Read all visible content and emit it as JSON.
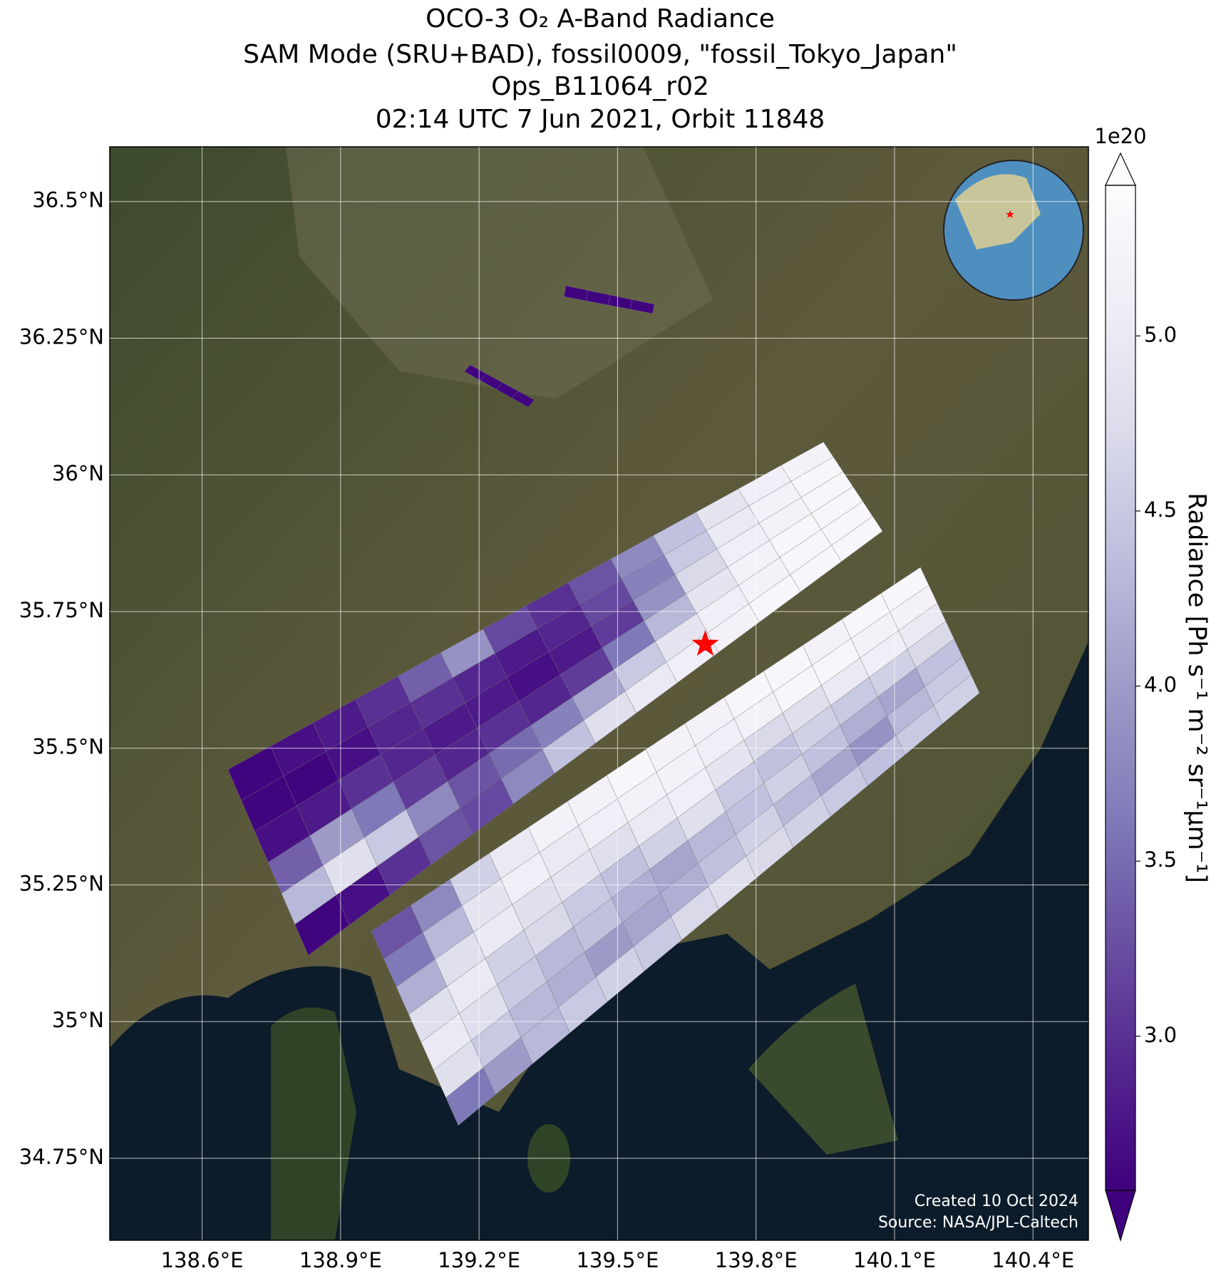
{
  "chart_data": {
    "type": "map",
    "title": [
      "OCO-3 O₂ A-Band Radiance",
      "SAM Mode (SRU+BAD), fossil0009, \"fossil_Tokyo_Japan\"",
      "Ops_B11064_r02",
      "02:14 UTC 7 Jun 2021, Orbit 11848"
    ],
    "xlim": [
      138.4,
      140.52
    ],
    "ylim": [
      34.6,
      36.6
    ],
    "grid": true,
    "xticks": [
      {
        "value": 138.6,
        "label": "138.6°E"
      },
      {
        "value": 138.9,
        "label": "138.9°E"
      },
      {
        "value": 139.2,
        "label": "139.2°E"
      },
      {
        "value": 139.5,
        "label": "139.5°E"
      },
      {
        "value": 139.8,
        "label": "139.8°E"
      },
      {
        "value": 140.1,
        "label": "140.1°E"
      },
      {
        "value": 140.4,
        "label": "140.4°E"
      }
    ],
    "yticks": [
      {
        "value": 34.75,
        "label": "34.75°N"
      },
      {
        "value": 35,
        "label": "35°N"
      },
      {
        "value": 35.25,
        "label": "35.25°N"
      },
      {
        "value": 35.5,
        "label": "35.5°N"
      },
      {
        "value": 35.75,
        "label": "35.75°N"
      },
      {
        "value": 36,
        "label": "36°N"
      },
      {
        "value": 36.25,
        "label": "36.25°N"
      },
      {
        "value": 36.5,
        "label": "36.5°N"
      }
    ],
    "colorbar": {
      "label": "Radiance [Ph s⁻¹ m⁻² sr⁻¹μm⁻¹]",
      "offset_label": "1e20",
      "clim": [
        2.56,
        5.43
      ],
      "ticks": [
        {
          "value": 3,
          "label": "3.0"
        },
        {
          "value": 3.5,
          "label": "3.5"
        },
        {
          "value": 4,
          "label": "4.0"
        },
        {
          "value": 4.5,
          "label": "4.5"
        },
        {
          "value": 5,
          "label": "5.0"
        }
      ],
      "colors": [
        "#3f007d",
        "#54278f",
        "#6a51a3",
        "#807dba",
        "#9e9ac8",
        "#bcbddc",
        "#dadaeb",
        "#efedf5",
        "#fcfbfd"
      ]
    },
    "swaths": [
      {
        "corners": [
          [
            138.656,
            35.461
          ],
          [
            139.946,
            36.06
          ],
          [
            140.074,
            35.897
          ],
          [
            138.83,
            35.121
          ]
        ],
        "values": [
          [
            2.6,
            2.7,
            2.8,
            3.0,
            3.4,
            3.9,
            3.2,
            3.0,
            3.3,
            3.8,
            4.4,
            4.9,
            5.1,
            5.2
          ],
          [
            2.6,
            2.6,
            2.7,
            2.9,
            3.0,
            2.9,
            2.8,
            2.9,
            3.2,
            3.7,
            4.5,
            5.0,
            5.2,
            5.3
          ],
          [
            2.7,
            2.8,
            3.0,
            2.9,
            2.8,
            2.8,
            2.7,
            2.8,
            3.1,
            3.9,
            4.7,
            5.1,
            5.2,
            5.3
          ],
          [
            3.4,
            4.0,
            3.6,
            3.1,
            2.9,
            3.0,
            2.9,
            3.1,
            3.6,
            4.3,
            4.9,
            5.2,
            5.3,
            5.3
          ],
          [
            4.3,
            4.8,
            4.5,
            3.8,
            3.3,
            3.5,
            3.7,
            4.1,
            4.5,
            4.9,
            5.1,
            5.2,
            5.3,
            5.3
          ],
          [
            2.6,
            2.7,
            3.0,
            3.3,
            3.2,
            3.8,
            4.4,
            4.8,
            5.0,
            5.1,
            5.2,
            5.3,
            5.3,
            5.3
          ]
        ]
      },
      {
        "corners": [
          [
            138.967,
            35.165
          ],
          [
            140.156,
            35.831
          ],
          [
            140.284,
            35.601
          ],
          [
            139.155,
            34.81
          ]
        ],
        "values": [
          [
            3.3,
            3.8,
            4.6,
            5.0,
            5.2,
            5.2,
            5.3,
            5.2,
            5.2,
            5.3,
            5.3,
            5.2,
            5.3,
            5.3
          ],
          [
            3.6,
            4.3,
            4.9,
            5.1,
            5.0,
            5.1,
            5.2,
            5.2,
            5.1,
            5.2,
            5.3,
            5.3,
            5.2,
            5.2
          ],
          [
            4.2,
            4.8,
            5.0,
            4.8,
            4.9,
            4.8,
            5.0,
            5.1,
            4.9,
            4.7,
            4.8,
            5.0,
            5.1,
            5.0
          ],
          [
            4.8,
            5.0,
            4.6,
            4.7,
            4.5,
            4.4,
            4.6,
            4.8,
            4.5,
            4.4,
            4.6,
            4.5,
            4.6,
            4.7
          ],
          [
            5.0,
            4.8,
            4.5,
            4.3,
            4.4,
            4.2,
            4.1,
            4.3,
            4.4,
            4.6,
            4.4,
            4.2,
            4.1,
            4.4
          ],
          [
            4.8,
            4.5,
            4.3,
            4.2,
            4.0,
            4.1,
            4.2,
            4.4,
            4.6,
            4.3,
            4.1,
            3.9,
            4.3,
            4.5
          ],
          [
            3.6,
            4.0,
            4.3,
            4.5,
            4.6,
            4.5,
            4.7,
            4.8,
            4.7,
            4.6,
            4.5,
            4.4,
            4.5,
            4.6
          ]
        ]
      },
      {
        "corners": [
          [
            139.388,
            36.346
          ],
          [
            139.58,
            36.312
          ],
          [
            139.576,
            36.295
          ],
          [
            139.384,
            36.326
          ]
        ],
        "values": [
          [
            2.6,
            2.6,
            2.6,
            2.6
          ]
        ]
      },
      {
        "corners": [
          [
            139.181,
            36.201
          ],
          [
            139.32,
            36.137
          ],
          [
            139.306,
            36.124
          ],
          [
            139.168,
            36.189
          ]
        ],
        "values": [
          [
            2.6,
            2.6,
            2.6,
            2.6
          ]
        ]
      }
    ],
    "marker": {
      "lon": 139.69,
      "lat": 35.69,
      "color": "#ff0000"
    },
    "annotations": [
      "Created 10 Oct 2024",
      "Source: NASA/JPL-Caltech"
    ]
  }
}
